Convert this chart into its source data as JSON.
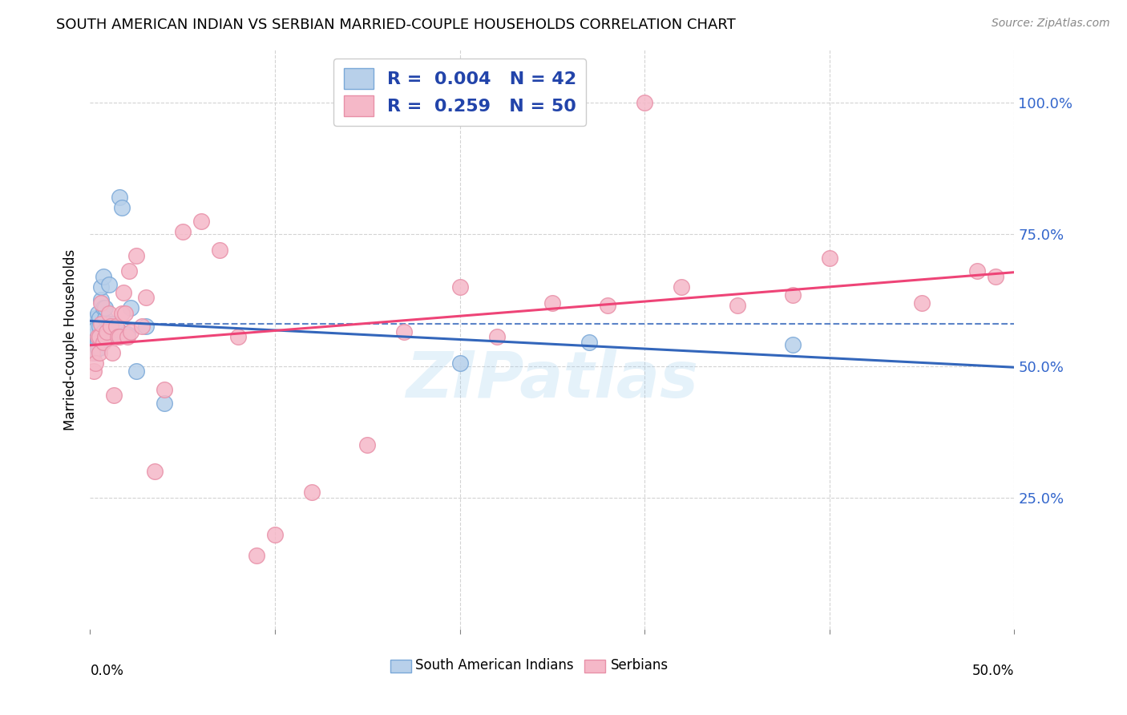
{
  "title": "SOUTH AMERICAN INDIAN VS SERBIAN MARRIED-COUPLE HOUSEHOLDS CORRELATION CHART",
  "source": "Source: ZipAtlas.com",
  "ylabel": "Married-couple Households",
  "watermark": "ZIPatlas",
  "blue_fill": "#b8d0ea",
  "pink_fill": "#f5b8c8",
  "blue_edge": "#7aa8d8",
  "pink_edge": "#e890a8",
  "blue_line_color": "#3366bb",
  "pink_line_color": "#ee4477",
  "blue_dash_color": "#3366bb",
  "legend_text_color": "#2244aa",
  "R_blue": "0.004",
  "N_blue": "42",
  "R_pink": "0.259",
  "N_pink": "50",
  "blue_scatter_x": [
    0.0005,
    0.001,
    0.001,
    0.002,
    0.002,
    0.002,
    0.003,
    0.003,
    0.003,
    0.004,
    0.004,
    0.004,
    0.004,
    0.005,
    0.005,
    0.005,
    0.006,
    0.006,
    0.007,
    0.007,
    0.007,
    0.008,
    0.008,
    0.009,
    0.01,
    0.01,
    0.011,
    0.012,
    0.013,
    0.014,
    0.015,
    0.016,
    0.017,
    0.019,
    0.02,
    0.022,
    0.025,
    0.03,
    0.04,
    0.2,
    0.27,
    0.38
  ],
  "blue_scatter_y": [
    0.545,
    0.555,
    0.57,
    0.565,
    0.54,
    0.525,
    0.58,
    0.59,
    0.57,
    0.6,
    0.55,
    0.545,
    0.535,
    0.59,
    0.575,
    0.535,
    0.625,
    0.65,
    0.67,
    0.61,
    0.565,
    0.59,
    0.61,
    0.56,
    0.655,
    0.58,
    0.575,
    0.56,
    0.58,
    0.57,
    0.57,
    0.82,
    0.8,
    0.56,
    0.56,
    0.61,
    0.49,
    0.575,
    0.43,
    0.505,
    0.545,
    0.54
  ],
  "pink_scatter_x": [
    0.001,
    0.002,
    0.003,
    0.004,
    0.005,
    0.005,
    0.006,
    0.006,
    0.007,
    0.008,
    0.009,
    0.01,
    0.011,
    0.012,
    0.013,
    0.014,
    0.015,
    0.016,
    0.017,
    0.018,
    0.019,
    0.02,
    0.021,
    0.022,
    0.025,
    0.028,
    0.03,
    0.035,
    0.04,
    0.05,
    0.06,
    0.07,
    0.08,
    0.09,
    0.1,
    0.12,
    0.15,
    0.17,
    0.2,
    0.22,
    0.25,
    0.28,
    0.3,
    0.32,
    0.35,
    0.38,
    0.4,
    0.45,
    0.48,
    0.49
  ],
  "pink_scatter_y": [
    0.525,
    0.49,
    0.505,
    0.555,
    0.555,
    0.525,
    0.58,
    0.62,
    0.545,
    0.555,
    0.565,
    0.6,
    0.575,
    0.525,
    0.445,
    0.575,
    0.555,
    0.555,
    0.6,
    0.64,
    0.6,
    0.555,
    0.68,
    0.565,
    0.71,
    0.575,
    0.63,
    0.3,
    0.455,
    0.755,
    0.775,
    0.72,
    0.555,
    0.14,
    0.18,
    0.26,
    0.35,
    0.565,
    0.65,
    0.555,
    0.62,
    0.615,
    1.0,
    0.65,
    0.615,
    0.635,
    0.705,
    0.62,
    0.68,
    0.67
  ],
  "xmin": 0.0,
  "xmax": 0.5,
  "ymin": 0.0,
  "ymax": 1.1,
  "ytick_values": [
    0.25,
    0.5,
    0.75,
    1.0
  ],
  "ytick_labels": [
    "25.0%",
    "50.0%",
    "75.0%",
    "100.0%"
  ],
  "ytick_color": "#3366cc",
  "dot_size": 200
}
